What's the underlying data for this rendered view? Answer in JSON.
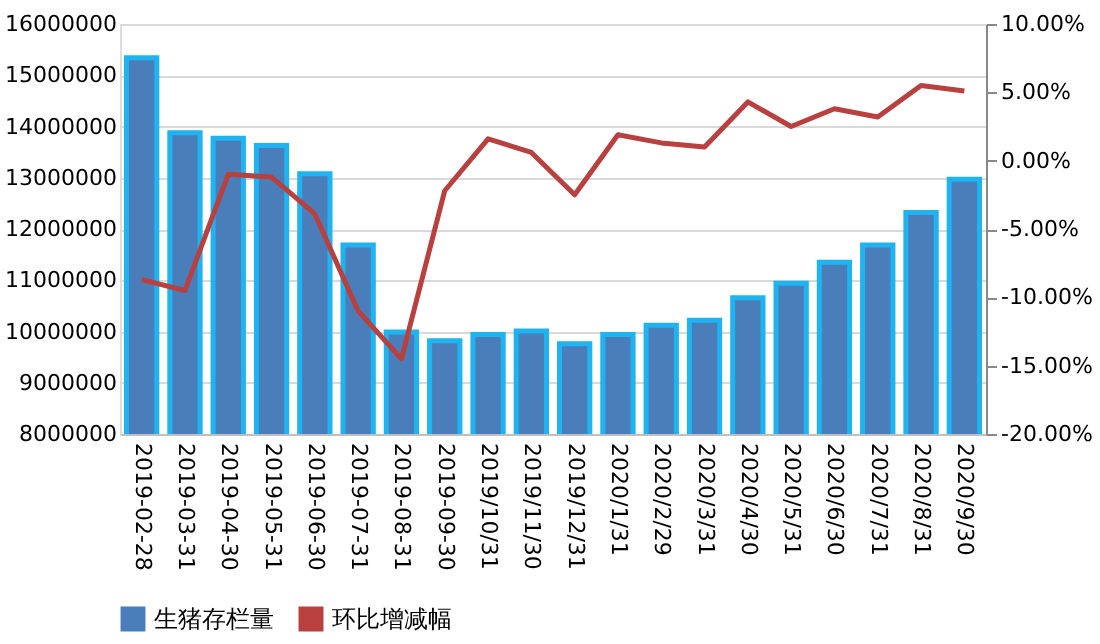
{
  "chart_data": {
    "type": "bar",
    "categories": [
      "2019-02-28",
      "2019-03-31",
      "2019-04-30",
      "2019-05-31",
      "2019-06-30",
      "2019-07-31",
      "2019-08-31",
      "2019-09-30",
      "2019/10/31",
      "2019/11/30",
      "2019/12/31",
      "2020/1/31",
      "2020/2/29",
      "2020/3/31",
      "2020/4/30",
      "2020/5/31",
      "2020/6/30",
      "2020/7/31",
      "2020/8/31",
      "2020/9/30"
    ],
    "series": [
      {
        "name": "生猪存栏量",
        "color": "#4a7ebb",
        "values": [
          15340000,
          13880000,
          13770000,
          13630000,
          13080000,
          11690000,
          9990000,
          9820000,
          9940000,
          10010000,
          9760000,
          9940000,
          10120000,
          10220000,
          10660000,
          10940000,
          11350000,
          11690000,
          12320000,
          12970000
        ]
      },
      {
        "name": "环比增减幅",
        "type": "line",
        "axis": "y2",
        "color": "#b8403f",
        "values": [
          -8.7,
          -9.5,
          -1.0,
          -1.2,
          -3.9,
          -11.0,
          -14.5,
          -2.2,
          1.6,
          0.6,
          -2.5,
          1.9,
          1.3,
          1.0,
          4.3,
          2.5,
          3.8,
          3.2,
          5.5,
          5.1
        ]
      }
    ],
    "ylim": [
      8000000,
      16000000
    ],
    "yticks": [
      8000000,
      9000000,
      10000000,
      11000000,
      12000000,
      13000000,
      14000000,
      15000000,
      16000000
    ],
    "y2lim": [
      -20,
      10
    ],
    "y2ticks": [
      {
        "value": -20,
        "label": "-20.00%"
      },
      {
        "value": -15,
        "label": "-15.00%"
      },
      {
        "value": -10,
        "label": "-10.00%"
      },
      {
        "value": -5,
        "label": "-5.00%"
      },
      {
        "value": 0,
        "label": "0.00%"
      },
      {
        "value": 5,
        "label": "5.00%"
      },
      {
        "value": 10,
        "label": "10.00%"
      }
    ],
    "grid": "y",
    "legend": "bottom",
    "marker": "none",
    "line_style": "solid"
  }
}
